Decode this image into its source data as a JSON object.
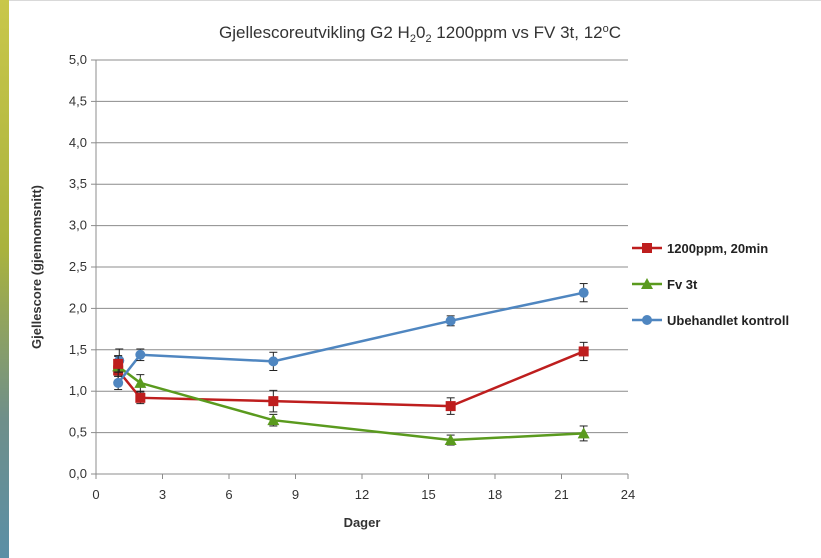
{
  "chart_data": {
    "type": "line",
    "title_parts": [
      {
        "text": "Gjellescoreutvikling G2 H",
        "sub": false
      },
      {
        "text": "2",
        "sub": true
      },
      {
        "text": "0",
        "sub": false
      },
      {
        "text": "2",
        "sub": true
      },
      {
        "text": " 1200ppm vs FV 3t, 12",
        "sub": false
      },
      {
        "text": "o",
        "sup": true
      },
      {
        "text": "C",
        "sub": false
      }
    ],
    "xlabel": "Dager",
    "ylabel": "Gjellescore (gjennomsnitt)",
    "xlim": [
      0,
      24
    ],
    "ylim": [
      0,
      5
    ],
    "x_ticks": [
      0,
      3,
      6,
      9,
      12,
      15,
      18,
      21,
      24
    ],
    "x_tick_labels": [
      "0",
      "3",
      "6",
      "9",
      "12",
      "15",
      "18",
      "21",
      "24"
    ],
    "y_ticks": [
      0,
      0.5,
      1,
      1.5,
      2,
      2.5,
      3,
      3.5,
      4,
      4.5,
      5
    ],
    "y_tick_labels": [
      "0,0",
      "0,5",
      "1,0",
      "1,5",
      "2,0",
      "2,5",
      "3,0",
      "3,5",
      "4,0",
      "4,5",
      "5,0"
    ],
    "grid": "horizontal",
    "legend_position": "right",
    "series": [
      {
        "name": "1200ppm, 20min",
        "color": "#be1e1e",
        "marker": "square",
        "points": [
          {
            "x": 1,
            "y": 1.25,
            "err": 0.12
          },
          {
            "x": 2,
            "y": 0.92,
            "err": 0.07
          },
          {
            "x": 8,
            "y": 0.88,
            "err": 0.13
          },
          {
            "x": 16,
            "y": 0.82,
            "err": 0.1
          },
          {
            "x": 22,
            "y": 1.48,
            "err": 0.11
          }
        ]
      },
      {
        "name": "Fv 3t",
        "color": "#5a9a1e",
        "marker": "triangle",
        "points": [
          {
            "x": 1,
            "y": 1.3,
            "err": 0.12
          },
          {
            "x": 2,
            "y": 1.1,
            "err": 0.1
          },
          {
            "x": 8,
            "y": 0.65,
            "err": 0.07
          },
          {
            "x": 16,
            "y": 0.41,
            "err": 0.06
          },
          {
            "x": 22,
            "y": 0.49,
            "err": 0.09
          }
        ]
      },
      {
        "name": "Ubehandlet kontroll",
        "color": "#4f86c0",
        "marker": "circle",
        "points": [
          {
            "x": 1,
            "y": 1.1,
            "err": 0.08
          },
          {
            "x": 2,
            "y": 1.44,
            "err": 0.07
          },
          {
            "x": 8,
            "y": 1.36,
            "err": 0.11
          },
          {
            "x": 16,
            "y": 1.85,
            "err": 0.06
          },
          {
            "x": 22,
            "y": 2.19,
            "err": 0.11
          }
        ]
      }
    ]
  },
  "extra_points": [
    {
      "series": 2,
      "x": 1.05,
      "y": 1.37,
      "err": 0.14
    },
    {
      "series": 0,
      "x": 1.0,
      "y": 1.33,
      "err": 0.1
    }
  ]
}
